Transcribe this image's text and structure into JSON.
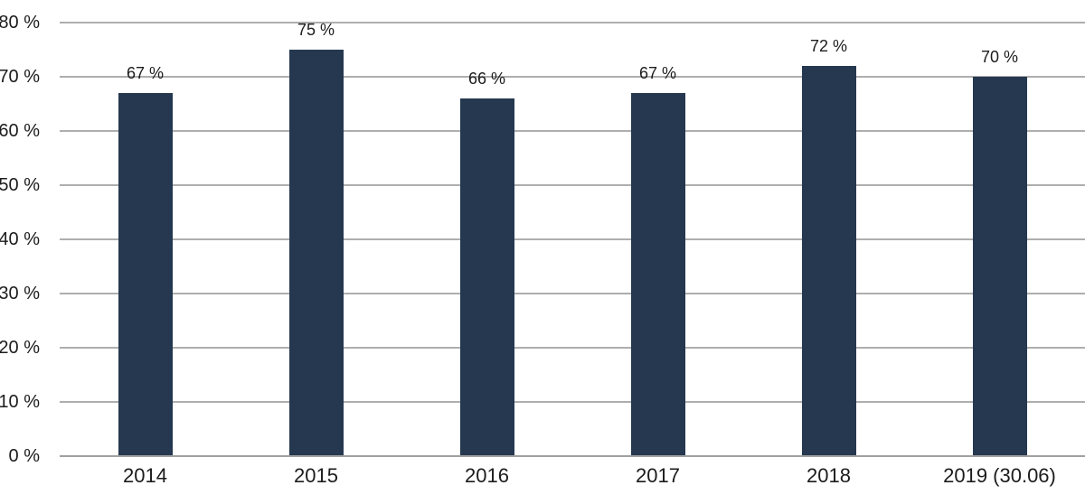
{
  "chart_data": {
    "type": "bar",
    "title": "",
    "xlabel": "",
    "ylabel": "",
    "categories": [
      "2014",
      "2015",
      "2016",
      "2017",
      "2018",
      "2019 (30.06)"
    ],
    "values": [
      67,
      75,
      66,
      67,
      72,
      70
    ],
    "value_labels": [
      "67 %",
      "75 %",
      "66 %",
      "67 %",
      "72 %",
      "70 %"
    ],
    "y_ticks": [
      {
        "value": 0,
        "label": "0 %"
      },
      {
        "value": 10,
        "label": "10 %"
      },
      {
        "value": 20,
        "label": "20 %"
      },
      {
        "value": 30,
        "label": "30 %"
      },
      {
        "value": 40,
        "label": "40 %"
      },
      {
        "value": 50,
        "label": "50 %"
      },
      {
        "value": 60,
        "label": "60 %"
      },
      {
        "value": 70,
        "label": "70 %"
      },
      {
        "value": 80,
        "label": "80 %"
      }
    ],
    "ylim": [
      0,
      80
    ],
    "grid": "horizontal",
    "legend_position": "none",
    "colors": {
      "bar": "#253850",
      "gridline": "#aeaeae",
      "axis_line": "#a0a0a0",
      "text": "#1c1c1c",
      "background": "#ffffff"
    }
  }
}
